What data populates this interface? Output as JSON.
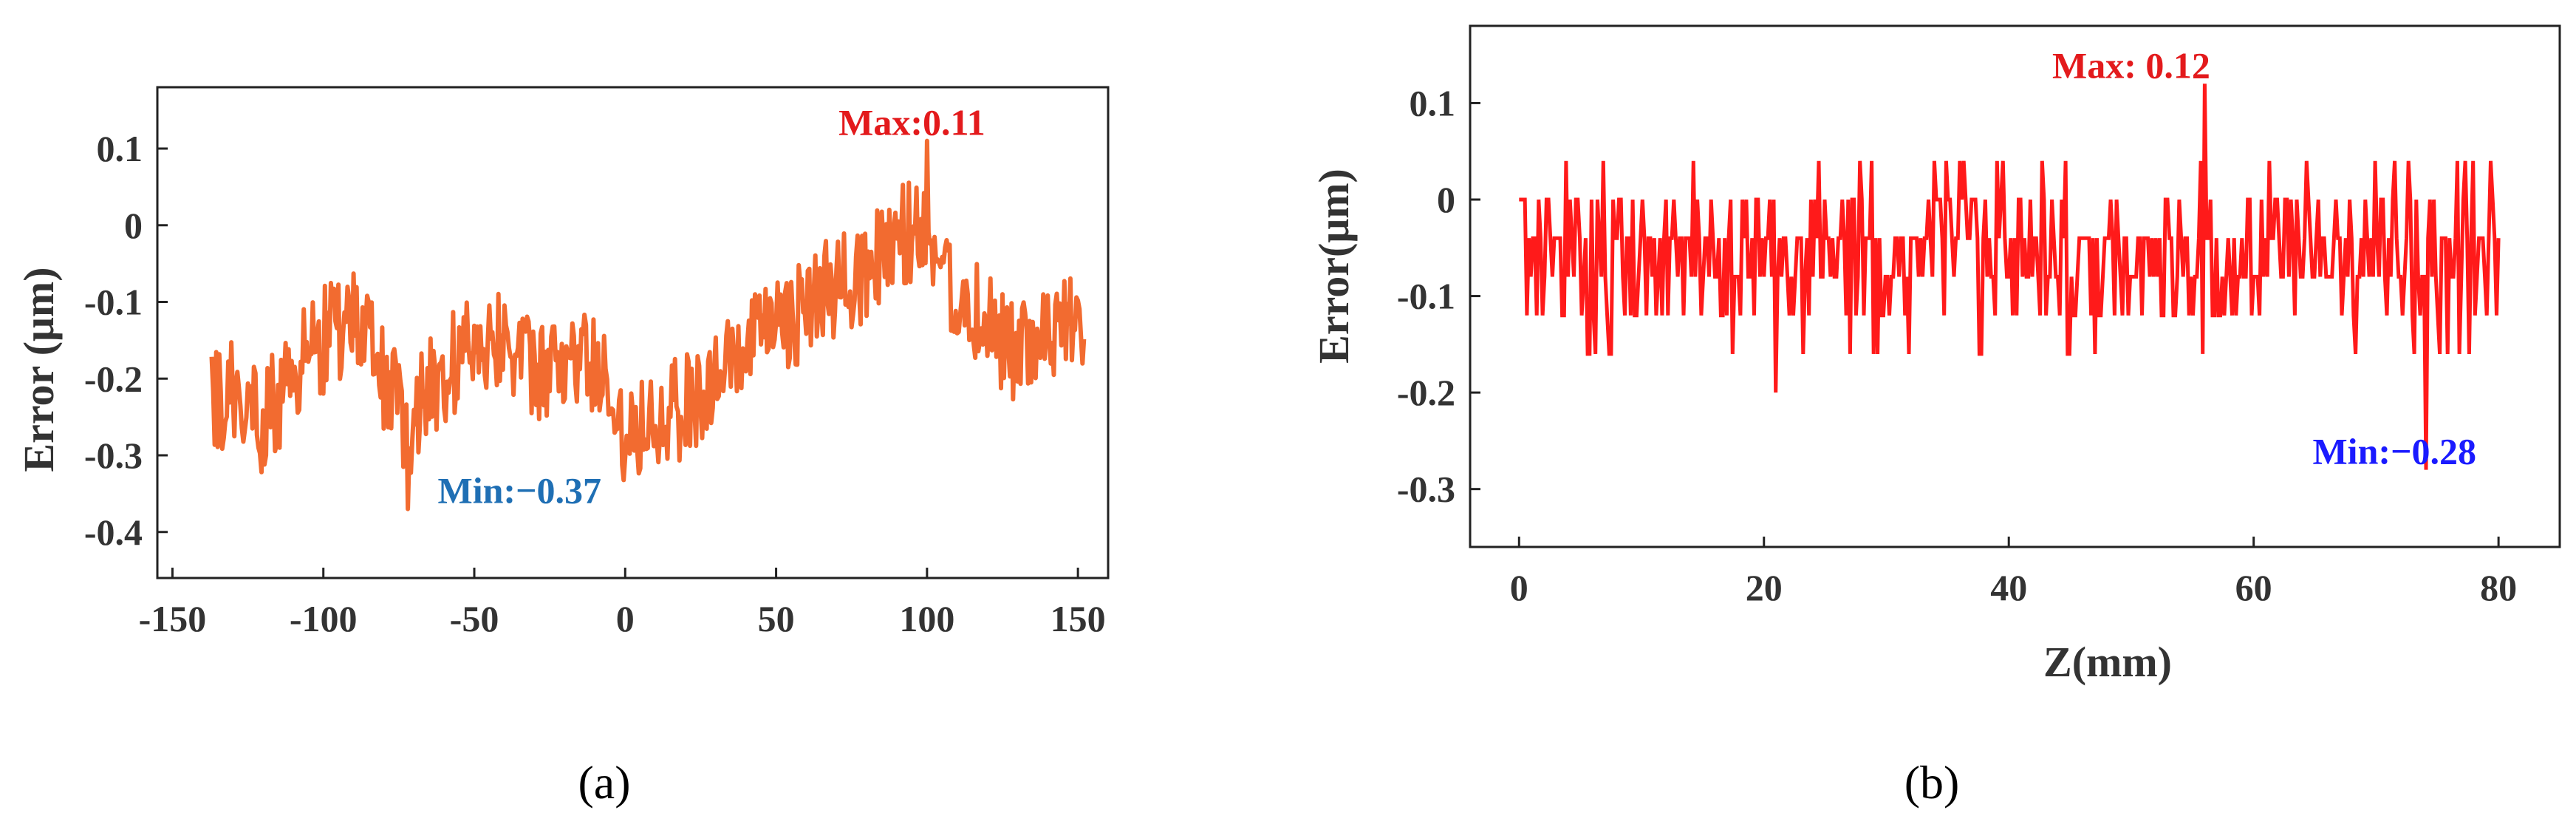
{
  "chart_data": [
    {
      "type": "line",
      "caption": "(a)",
      "xlabel": "",
      "ylabel": "Error (μm)",
      "xlim": [
        -155,
        160
      ],
      "ylim": [
        -0.46,
        0.18
      ],
      "xticks": [
        -150,
        -100,
        -50,
        0,
        50,
        100,
        150
      ],
      "yticks": [
        -0.4,
        -0.3,
        -0.2,
        -0.1,
        0,
        0.1
      ],
      "ytick_labels": [
        "-0.4",
        "-0.3",
        "-0.2",
        "-0.1",
        "0",
        "0.1"
      ],
      "series": [
        {
          "color": "#f26b30",
          "x_range": [
            -137,
            152
          ],
          "anchors": [
            [
              -137,
              -0.24
            ],
            [
              -128,
              -0.21
            ],
            [
              -120,
              -0.26
            ],
            [
              -110,
              -0.19
            ],
            [
              -100,
              -0.15
            ],
            [
              -90,
              -0.12
            ],
            [
              -80,
              -0.2
            ],
            [
              -72,
              -0.26
            ],
            [
              -62,
              -0.2
            ],
            [
              -50,
              -0.15
            ],
            [
              -40,
              -0.14
            ],
            [
              -30,
              -0.2
            ],
            [
              -20,
              -0.18
            ],
            [
              -10,
              -0.18
            ],
            [
              0,
              -0.27
            ],
            [
              10,
              -0.24
            ],
            [
              20,
              -0.24
            ],
            [
              30,
              -0.2
            ],
            [
              40,
              -0.17
            ],
            [
              50,
              -0.13
            ],
            [
              60,
              -0.11
            ],
            [
              70,
              -0.08
            ],
            [
              80,
              -0.06
            ],
            [
              90,
              -0.02
            ],
            [
              100,
              0.0
            ],
            [
              110,
              -0.1
            ],
            [
              120,
              -0.12
            ],
            [
              130,
              -0.17
            ],
            [
              140,
              -0.15
            ],
            [
              152,
              -0.12
            ]
          ],
          "noise": 0.07,
          "step": 0.5
        }
      ],
      "annotations": [
        {
          "text": "Max:0.11",
          "color": "#e31a1c",
          "x": 95,
          "y": 0.11,
          "point": [
            100,
            0.11
          ]
        },
        {
          "text": "Min:−0.37",
          "color": "#1f6fb4",
          "x": -35,
          "y": -0.37,
          "point": [
            -72,
            -0.37
          ]
        }
      ]
    },
    {
      "type": "line",
      "caption": "(b)",
      "xlabel": "Z(mm)",
      "ylabel": "Error(μm)",
      "xlim": [
        -4,
        85
      ],
      "ylim": [
        -0.36,
        0.18
      ],
      "xticks": [
        0,
        20,
        40,
        60,
        80
      ],
      "yticks": [
        -0.3,
        -0.2,
        -0.1,
        0,
        0.1
      ],
      "ytick_labels": [
        "-0.3",
        "-0.2",
        "-0.1",
        "0",
        "0.1"
      ],
      "series": [
        {
          "color": "#ff1a1a",
          "x_range": [
            0,
            80
          ],
          "levels": [
            -0.28,
            -0.24,
            -0.2,
            -0.16,
            -0.12,
            -0.08,
            -0.04,
            0,
            0.04,
            0.08,
            0.12
          ],
          "base": -0.06,
          "noise": 0.045,
          "step": 0.16
        }
      ],
      "annotations": [
        {
          "text": "Max: 0.12",
          "color": "#e31a1c",
          "x": 50,
          "y": 0.12,
          "point": [
            56,
            0.12
          ]
        },
        {
          "text": "Min:−0.28",
          "color": "#1a1aff",
          "x": 71.5,
          "y": -0.28,
          "point": [
            74,
            -0.28
          ]
        }
      ]
    }
  ]
}
